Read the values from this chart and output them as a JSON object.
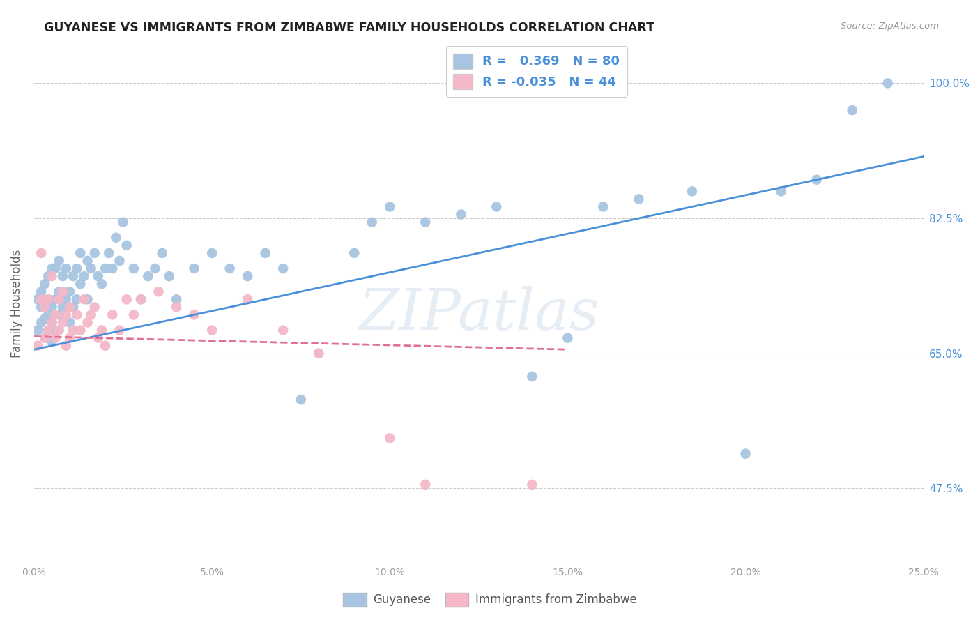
{
  "title": "GUYANESE VS IMMIGRANTS FROM ZIMBABWE FAMILY HOUSEHOLDS CORRELATION CHART",
  "source": "Source: ZipAtlas.com",
  "ylabel": "Family Households",
  "ytick_labels": [
    "47.5%",
    "65.0%",
    "82.5%",
    "100.0%"
  ],
  "ytick_values": [
    0.475,
    0.65,
    0.825,
    1.0
  ],
  "xtick_values": [
    0.0,
    0.05,
    0.1,
    0.15,
    0.2,
    0.25
  ],
  "xtick_labels": [
    "0.0%",
    "5.0%",
    "10.0%",
    "15.0%",
    "20.0%",
    "25.0%"
  ],
  "xlim": [
    0.0,
    0.25
  ],
  "ylim": [
    0.38,
    1.05
  ],
  "blue_R": 0.369,
  "blue_N": 80,
  "pink_R": -0.035,
  "pink_N": 44,
  "blue_color": "#a8c4e0",
  "pink_color": "#f4b8c8",
  "blue_line_color": "#4a90d9",
  "pink_line_color": "#e07090",
  "legend_label_blue": "Guyanese",
  "legend_label_pink": "Immigrants from Zimbabwe",
  "watermark": "ZIPatlas",
  "background_color": "#ffffff",
  "blue_line_x": [
    0.0,
    0.25
  ],
  "blue_line_y": [
    0.655,
    0.905
  ],
  "pink_line_x": [
    0.0,
    0.15
  ],
  "pink_line_y": [
    0.672,
    0.655
  ],
  "blue_x": [
    0.001,
    0.001,
    0.002,
    0.002,
    0.002,
    0.003,
    0.003,
    0.003,
    0.003,
    0.004,
    0.004,
    0.004,
    0.004,
    0.005,
    0.005,
    0.005,
    0.005,
    0.006,
    0.006,
    0.006,
    0.007,
    0.007,
    0.007,
    0.008,
    0.008,
    0.009,
    0.009,
    0.01,
    0.01,
    0.011,
    0.011,
    0.012,
    0.012,
    0.013,
    0.013,
    0.014,
    0.015,
    0.015,
    0.016,
    0.017,
    0.018,
    0.019,
    0.02,
    0.021,
    0.022,
    0.023,
    0.024,
    0.025,
    0.026,
    0.028,
    0.03,
    0.032,
    0.034,
    0.036,
    0.038,
    0.04,
    0.045,
    0.05,
    0.055,
    0.06,
    0.065,
    0.07,
    0.075,
    0.08,
    0.09,
    0.095,
    0.1,
    0.11,
    0.12,
    0.13,
    0.14,
    0.15,
    0.16,
    0.17,
    0.185,
    0.2,
    0.21,
    0.22,
    0.23,
    0.24
  ],
  "blue_y": [
    0.68,
    0.72,
    0.69,
    0.71,
    0.73,
    0.67,
    0.695,
    0.715,
    0.74,
    0.68,
    0.7,
    0.72,
    0.75,
    0.665,
    0.69,
    0.71,
    0.76,
    0.68,
    0.72,
    0.76,
    0.7,
    0.73,
    0.77,
    0.71,
    0.75,
    0.72,
    0.76,
    0.69,
    0.73,
    0.71,
    0.75,
    0.72,
    0.76,
    0.74,
    0.78,
    0.75,
    0.72,
    0.77,
    0.76,
    0.78,
    0.75,
    0.74,
    0.76,
    0.78,
    0.76,
    0.8,
    0.77,
    0.82,
    0.79,
    0.76,
    0.72,
    0.75,
    0.76,
    0.78,
    0.75,
    0.72,
    0.76,
    0.78,
    0.76,
    0.75,
    0.78,
    0.76,
    0.59,
    0.65,
    0.78,
    0.82,
    0.84,
    0.82,
    0.83,
    0.84,
    0.62,
    0.67,
    0.84,
    0.85,
    0.86,
    0.52,
    0.86,
    0.875,
    0.965,
    1.0
  ],
  "pink_x": [
    0.001,
    0.002,
    0.002,
    0.003,
    0.003,
    0.004,
    0.004,
    0.005,
    0.005,
    0.006,
    0.006,
    0.007,
    0.007,
    0.008,
    0.008,
    0.009,
    0.009,
    0.01,
    0.01,
    0.011,
    0.012,
    0.013,
    0.014,
    0.015,
    0.016,
    0.017,
    0.018,
    0.019,
    0.02,
    0.022,
    0.024,
    0.026,
    0.028,
    0.03,
    0.035,
    0.04,
    0.045,
    0.05,
    0.06,
    0.07,
    0.08,
    0.1,
    0.11,
    0.14
  ],
  "pink_y": [
    0.66,
    0.72,
    0.78,
    0.67,
    0.71,
    0.68,
    0.72,
    0.69,
    0.75,
    0.67,
    0.7,
    0.68,
    0.72,
    0.69,
    0.73,
    0.66,
    0.7,
    0.67,
    0.71,
    0.68,
    0.7,
    0.68,
    0.72,
    0.69,
    0.7,
    0.71,
    0.67,
    0.68,
    0.66,
    0.7,
    0.68,
    0.72,
    0.7,
    0.72,
    0.73,
    0.71,
    0.7,
    0.68,
    0.72,
    0.68,
    0.65,
    0.54,
    0.48,
    0.48
  ]
}
